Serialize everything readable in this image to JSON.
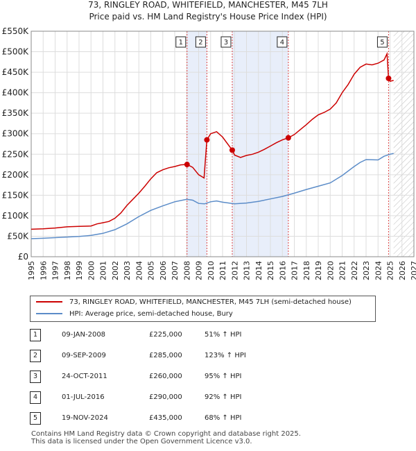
{
  "chart_data": {
    "type": "line",
    "title": "73, RINGLEY ROAD, WHITEFIELD, MANCHESTER, M45 7LH",
    "subtitle": "Price paid vs. HM Land Registry's House Price Index (HPI)",
    "xlim": [
      1995,
      2027
    ],
    "ylim": [
      0,
      550000
    ],
    "x_ticks": [
      "1995",
      "1996",
      "1997",
      "1998",
      "1999",
      "2000",
      "2001",
      "2002",
      "2003",
      "2004",
      "2005",
      "2006",
      "2007",
      "2008",
      "2009",
      "2010",
      "2011",
      "2012",
      "2013",
      "2014",
      "2015",
      "2016",
      "2017",
      "2018",
      "2019",
      "2020",
      "2021",
      "2022",
      "2023",
      "2024",
      "2025",
      "2026",
      "2027"
    ],
    "y_ticks": [
      {
        "value": 0,
        "label": "£0"
      },
      {
        "value": 50000,
        "label": "£50K"
      },
      {
        "value": 100000,
        "label": "£100K"
      },
      {
        "value": 150000,
        "label": "£150K"
      },
      {
        "value": 200000,
        "label": "£200K"
      },
      {
        "value": 250000,
        "label": "£250K"
      },
      {
        "value": 300000,
        "label": "£300K"
      },
      {
        "value": 350000,
        "label": "£350K"
      },
      {
        "value": 400000,
        "label": "£400K"
      },
      {
        "value": 450000,
        "label": "£450K"
      },
      {
        "value": 500000,
        "label": "£500K"
      },
      {
        "value": 550000,
        "label": "£550K"
      }
    ],
    "series": [
      {
        "name": "73, RINGLEY ROAD, WHITEFIELD, MANCHESTER, M45 7LH (semi-detached house)",
        "color": "#cc0000",
        "points": [
          [
            1995.0,
            67000
          ],
          [
            1996.0,
            68000
          ],
          [
            1997.0,
            70000
          ],
          [
            1998.0,
            73000
          ],
          [
            1999.0,
            74000
          ],
          [
            2000.0,
            75000
          ],
          [
            2000.5,
            80000
          ],
          [
            2001.0,
            83000
          ],
          [
            2001.5,
            86000
          ],
          [
            2002.0,
            94000
          ],
          [
            2002.5,
            107000
          ],
          [
            2003.0,
            125000
          ],
          [
            2003.5,
            140000
          ],
          [
            2004.0,
            155000
          ],
          [
            2004.5,
            172000
          ],
          [
            2005.0,
            190000
          ],
          [
            2005.5,
            205000
          ],
          [
            2006.0,
            212000
          ],
          [
            2006.5,
            217000
          ],
          [
            2007.0,
            220000
          ],
          [
            2007.5,
            224000
          ],
          [
            2008.03,
            225000
          ],
          [
            2008.5,
            218000
          ],
          [
            2009.0,
            200000
          ],
          [
            2009.45,
            192000
          ],
          [
            2009.69,
            285000
          ],
          [
            2010.0,
            300000
          ],
          [
            2010.5,
            305000
          ],
          [
            2011.0,
            292000
          ],
          [
            2011.81,
            260000
          ],
          [
            2012.0,
            248000
          ],
          [
            2012.5,
            242000
          ],
          [
            2013.0,
            247000
          ],
          [
            2013.5,
            250000
          ],
          [
            2014.0,
            255000
          ],
          [
            2014.5,
            262000
          ],
          [
            2015.0,
            270000
          ],
          [
            2015.5,
            278000
          ],
          [
            2016.0,
            285000
          ],
          [
            2016.5,
            290000
          ],
          [
            2017.0,
            298000
          ],
          [
            2017.5,
            310000
          ],
          [
            2018.0,
            322000
          ],
          [
            2018.5,
            335000
          ],
          [
            2019.0,
            346000
          ],
          [
            2019.5,
            352000
          ],
          [
            2020.0,
            360000
          ],
          [
            2020.5,
            375000
          ],
          [
            2021.0,
            400000
          ],
          [
            2021.5,
            420000
          ],
          [
            2022.0,
            445000
          ],
          [
            2022.5,
            462000
          ],
          [
            2023.0,
            470000
          ],
          [
            2023.5,
            468000
          ],
          [
            2024.0,
            472000
          ],
          [
            2024.5,
            480000
          ],
          [
            2024.75,
            495000
          ],
          [
            2024.88,
            435000
          ],
          [
            2025.0,
            428000
          ],
          [
            2025.3,
            430000
          ]
        ]
      },
      {
        "name": "HPI: Average price, semi-detached house, Bury",
        "color": "#5b8cc8",
        "points": [
          [
            1995.0,
            44000
          ],
          [
            1996.0,
            45000
          ],
          [
            1997.0,
            46500
          ],
          [
            1998.0,
            48000
          ],
          [
            1999.0,
            49500
          ],
          [
            2000.0,
            52000
          ],
          [
            2001.0,
            57000
          ],
          [
            2002.0,
            66000
          ],
          [
            2003.0,
            80000
          ],
          [
            2004.0,
            98000
          ],
          [
            2005.0,
            113000
          ],
          [
            2006.0,
            124000
          ],
          [
            2007.0,
            134000
          ],
          [
            2008.0,
            140000
          ],
          [
            2008.5,
            138000
          ],
          [
            2009.0,
            130000
          ],
          [
            2009.5,
            129000
          ],
          [
            2010.0,
            134000
          ],
          [
            2010.5,
            136000
          ],
          [
            2011.0,
            133000
          ],
          [
            2012.0,
            129000
          ],
          [
            2013.0,
            131000
          ],
          [
            2014.0,
            135000
          ],
          [
            2015.0,
            141000
          ],
          [
            2016.0,
            147000
          ],
          [
            2017.0,
            155000
          ],
          [
            2018.0,
            164000
          ],
          [
            2019.0,
            172000
          ],
          [
            2020.0,
            180000
          ],
          [
            2021.0,
            198000
          ],
          [
            2022.0,
            220000
          ],
          [
            2022.5,
            230000
          ],
          [
            2023.0,
            237000
          ],
          [
            2024.0,
            236000
          ],
          [
            2024.5,
            245000
          ],
          [
            2025.0,
            250000
          ],
          [
            2025.3,
            252000
          ]
        ]
      }
    ],
    "sales": [
      {
        "num": "1",
        "x": 2008.03,
        "price_value": 225000,
        "date": "09-JAN-2008",
        "price": "£225,000",
        "change": "51% ↑ HPI"
      },
      {
        "num": "2",
        "x": 2009.69,
        "price_value": 285000,
        "date": "09-SEP-2009",
        "price": "£285,000",
        "change": "123% ↑ HPI"
      },
      {
        "num": "3",
        "x": 2011.81,
        "price_value": 260000,
        "date": "24-OCT-2011",
        "price": "£260,000",
        "change": "95% ↑ HPI"
      },
      {
        "num": "4",
        "x": 2016.5,
        "price_value": 290000,
        "date": "01-JUL-2016",
        "price": "£290,000",
        "change": "92% ↑ HPI"
      },
      {
        "num": "5",
        "x": 2024.88,
        "price_value": 435000,
        "date": "19-NOV-2024",
        "price": "£435,000",
        "change": "68% ↑ HPI"
      }
    ],
    "shaded_ranges": [
      [
        2008.03,
        2009.69
      ],
      [
        2011.81,
        2016.5
      ]
    ],
    "forecast_from": 2025.3
  },
  "legend": {
    "property": "73, RINGLEY ROAD, WHITEFIELD, MANCHESTER, M45 7LH (semi-detached house)",
    "hpi": "HPI: Average price, semi-detached house, Bury"
  },
  "footer": {
    "line1": "Contains HM Land Registry data © Crown copyright and database right 2025.",
    "line2": "This data is licensed under the Open Government Licence v3.0."
  },
  "colors": {
    "property": "#cc0000",
    "hpi": "#5b8cc8",
    "shade": "#e8eefa"
  }
}
